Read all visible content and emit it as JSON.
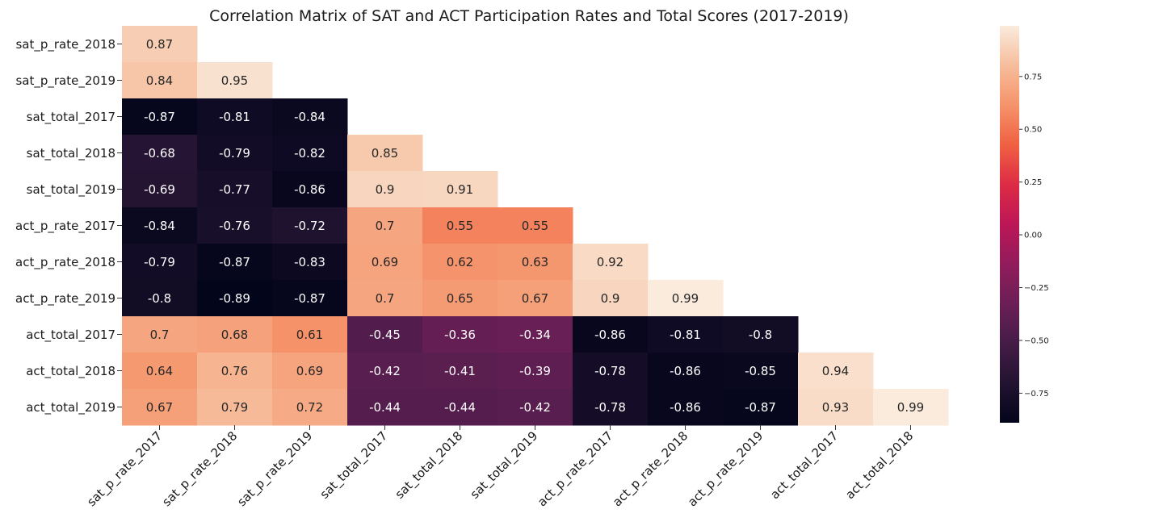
{
  "chart_data": {
    "type": "heatmap",
    "title": "Correlation Matrix of SAT and ACT Participation Rates and Total Scores (2017-2019)",
    "row_labels": [
      "sat_p_rate_2018",
      "sat_p_rate_2019",
      "sat_total_2017",
      "sat_total_2018",
      "sat_total_2019",
      "act_p_rate_2017",
      "act_p_rate_2018",
      "act_p_rate_2019",
      "act_total_2017",
      "act_total_2018",
      "act_total_2019"
    ],
    "col_labels": [
      "sat_p_rate_2017",
      "sat_p_rate_2018",
      "sat_p_rate_2019",
      "sat_total_2017",
      "sat_total_2018",
      "sat_total_2019",
      "act_p_rate_2017",
      "act_p_rate_2018",
      "act_p_rate_2019",
      "act_total_2017",
      "act_total_2018"
    ],
    "values": [
      [
        0.87
      ],
      [
        0.84,
        0.95
      ],
      [
        -0.87,
        -0.81,
        -0.84
      ],
      [
        -0.68,
        -0.79,
        -0.82,
        0.85
      ],
      [
        -0.69,
        -0.77,
        -0.86,
        0.9,
        0.91
      ],
      [
        -0.84,
        -0.76,
        -0.72,
        0.7,
        0.55,
        0.55
      ],
      [
        -0.79,
        -0.87,
        -0.83,
        0.69,
        0.62,
        0.63,
        0.92
      ],
      [
        -0.8,
        -0.89,
        -0.87,
        0.7,
        0.65,
        0.67,
        0.9,
        0.99
      ],
      [
        0.7,
        0.68,
        0.61,
        -0.45,
        -0.36,
        -0.34,
        -0.86,
        -0.81,
        -0.8
      ],
      [
        0.64,
        0.76,
        0.69,
        -0.42,
        -0.41,
        -0.39,
        -0.78,
        -0.86,
        -0.85,
        0.94
      ],
      [
        0.67,
        0.79,
        0.72,
        -0.44,
        -0.44,
        -0.42,
        -0.78,
        -0.86,
        -0.87,
        0.93,
        0.99
      ]
    ],
    "colormap": "rocket",
    "colorbar": {
      "range": [
        -0.89,
        0.99
      ],
      "ticks": [
        0.75,
        0.5,
        0.25,
        0.0,
        -0.25,
        -0.5,
        -0.75
      ],
      "tick_labels": [
        "0.75",
        "0.50",
        "0.25",
        "0.00",
        "−0.25",
        "−0.50",
        "−0.75"
      ]
    },
    "grid": false,
    "annotations": "cell values shown"
  }
}
